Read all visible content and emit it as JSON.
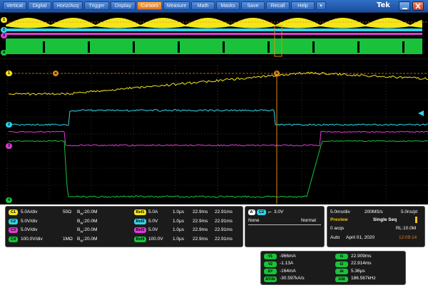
{
  "menu": {
    "items": [
      "Vertical",
      "Digital",
      "Horiz/Acq",
      "Trigger",
      "Display",
      "Cursors",
      "Measure",
      "Math",
      "Masks",
      "Save",
      "Recall",
      "Help"
    ],
    "active_index": 5,
    "dropdown_glyph": "▾",
    "brand": "Tek"
  },
  "colors": {
    "ch1": "#f5e61a",
    "ch2": "#2fd6e6",
    "ch3": "#e03ad8",
    "ch4": "#19c23a",
    "cursor": "#e08a1a",
    "accent": "#e07a20"
  },
  "markers": {
    "ch1": "1",
    "ch2": "2",
    "ch3": "3",
    "ch4": "4",
    "cursor_a": "a",
    "cursor_b": "b"
  },
  "channels": [
    {
      "id": "C1",
      "scale": "5.0A/div",
      "coupling": "50Ω",
      "bw": "20.0M",
      "ref": "Ref1",
      "ref_scale": "5.0A",
      "ref_time": "1.0μs",
      "pos1": "22.9ms",
      "pos2": "22.91ms"
    },
    {
      "id": "C2",
      "scale": "5.0V/div",
      "coupling": "",
      "bw": "20.0M",
      "ref": "Ref2",
      "ref_scale": "5.0V",
      "ref_time": "1.0μs",
      "pos1": "22.9ms",
      "pos2": "22.91ms"
    },
    {
      "id": "C3",
      "scale": "5.0V/div",
      "coupling": "",
      "bw": "20.0M",
      "ref": "Ref3",
      "ref_scale": "5.0V",
      "ref_time": "1.0μs",
      "pos1": "22.9ms",
      "pos2": "22.91ms"
    },
    {
      "id": "C4",
      "scale": "100.0V/div",
      "coupling": "1MΩ",
      "bw": "20.0M",
      "ref": "Ref4",
      "ref_scale": "100.0V",
      "ref_time": "1.0μs",
      "pos1": "22.9ms",
      "pos2": "22.91ms"
    }
  ],
  "bw_prefix": "B",
  "bw_sub": "W",
  "trigger": {
    "mode_badge": "A'",
    "source": "C2",
    "slope_glyph": "⌐",
    "level": "3.0V",
    "coupling": "None",
    "type": "Normal"
  },
  "acq": {
    "timebase": "5.0ms/div",
    "sample_rate": "200MS/s",
    "resolution": "5.0ns/pt",
    "mode": "Preview",
    "seq": "Single Seq",
    "acqs": "0 acqs",
    "record_length": "RL:10.0M",
    "trigger_mode": "Auto",
    "date": "April 01, 2020",
    "time": "12:09:14"
  },
  "cursors": {
    "left": [
      {
        "label": "V1",
        "value": "-966mA"
      },
      {
        "label": "V2",
        "value": "-1.13A"
      },
      {
        "label": "ΔY",
        "value": "-164mA"
      },
      {
        "label": "ΔY/Δt",
        "value": "-30.597kA/s"
      }
    ],
    "right": [
      {
        "label": "t1",
        "value": "22.909ms"
      },
      {
        "label": "t2",
        "value": "22.914ms"
      },
      {
        "label": "Δt",
        "value": "5.36μs"
      },
      {
        "label": "1/Δt",
        "value": "186.567kHz"
      }
    ]
  }
}
